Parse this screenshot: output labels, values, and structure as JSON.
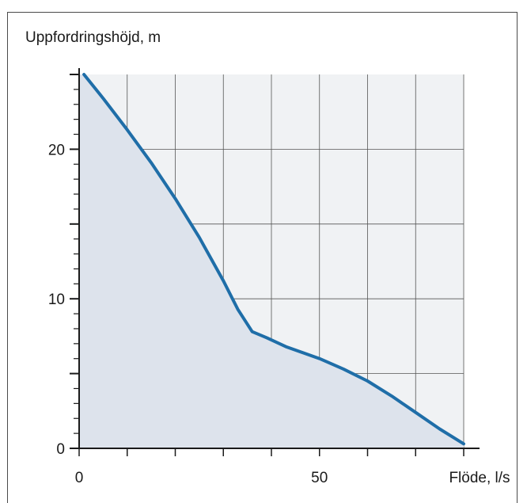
{
  "chart_data": {
    "type": "area",
    "ylabel": "Uppfordringshöjd, m",
    "xlabel": "Flöde, l/s",
    "xlim": [
      0,
      80
    ],
    "ylim": [
      0,
      25
    ],
    "x_ticks": [
      0,
      10,
      20,
      30,
      40,
      50,
      60,
      70,
      80
    ],
    "x_tick_labels": [
      "0",
      "50"
    ],
    "x_tick_label_values": [
      0,
      50
    ],
    "y_ticks": [
      0,
      5,
      10,
      15,
      20,
      25
    ],
    "y_tick_labels": [
      "0",
      "10",
      "20"
    ],
    "y_tick_label_values": [
      0,
      10,
      20
    ],
    "y_minor_step": 1,
    "grid": true,
    "colors": {
      "line": "#1f6ea8",
      "fill": "#dde3ec",
      "plot_bg": "#f0f2f4",
      "grid": "#555555",
      "axis": "#1a1a1a"
    },
    "series": [
      {
        "x": [
          1,
          5,
          10,
          15,
          20,
          25,
          30,
          33,
          36,
          39,
          43,
          50,
          55,
          60,
          65,
          70,
          75,
          80
        ],
        "y": [
          25.0,
          23.4,
          21.3,
          19.1,
          16.7,
          14.1,
          11.2,
          9.3,
          7.8,
          7.4,
          6.8,
          6.0,
          5.3,
          4.5,
          3.5,
          2.4,
          1.3,
          0.3
        ]
      }
    ]
  }
}
